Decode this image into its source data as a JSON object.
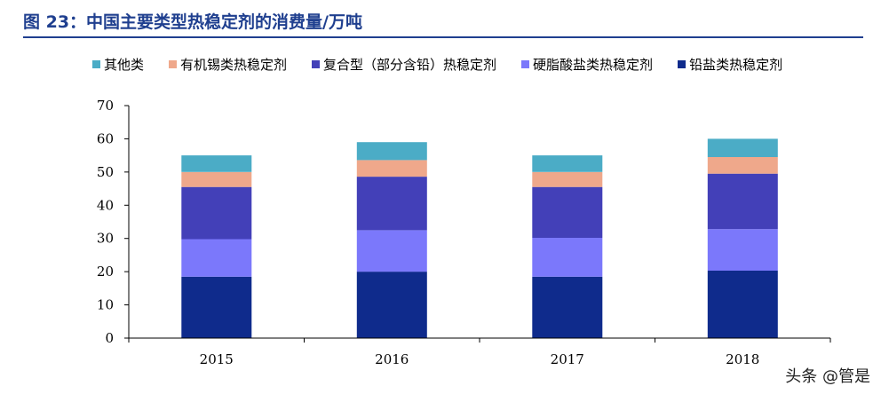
{
  "header": {
    "title": "图 23：中国主要类型热稳定剂的消费量/万吨"
  },
  "watermark": "头条 @管是",
  "colors": {
    "title": "#1f3f8f",
    "axis": "#000000"
  },
  "chart_data": {
    "type": "bar",
    "stacked": true,
    "title": "图 23：中国主要类型热稳定剂的消费量/万吨",
    "xlabel": "",
    "ylabel": "",
    "categories": [
      "2015",
      "2016",
      "2017",
      "2018"
    ],
    "ylim": [
      0,
      70
    ],
    "yticks": [
      0,
      10,
      20,
      30,
      40,
      50,
      60,
      70
    ],
    "legend_position": "top",
    "grid": false,
    "series": [
      {
        "name": "铅盐类热稳定剂",
        "color": "#0f2b8c",
        "values": [
          18.5,
          20.0,
          18.5,
          20.3
        ]
      },
      {
        "name": "硬脂酸盐类热稳定剂",
        "color": "#7b78fb",
        "values": [
          11.3,
          12.5,
          11.7,
          12.5
        ]
      },
      {
        "name": "复合型（部分含铅）热稳定剂",
        "color": "#4340b8",
        "values": [
          15.7,
          16.1,
          15.3,
          16.7
        ]
      },
      {
        "name": "有机锡类热稳定剂",
        "color": "#efa88b",
        "values": [
          4.5,
          5.0,
          4.5,
          5.0
        ]
      },
      {
        "name": "其他类",
        "color": "#4bacc6",
        "values": [
          5.0,
          5.4,
          5.0,
          5.5
        ]
      }
    ],
    "legend_order": [
      "其他类",
      "有机锡类热稳定剂",
      "复合型（部分含铅）热稳定剂",
      "硬脂酸盐类热稳定剂",
      "铅盐类热稳定剂"
    ]
  }
}
